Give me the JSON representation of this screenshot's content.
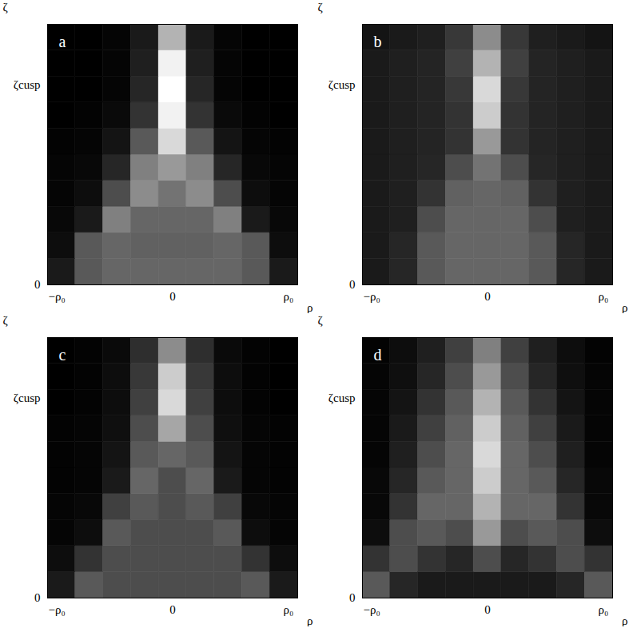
{
  "chart_data": [
    {
      "type": "heatmap",
      "title": "a",
      "x_label": "ρ",
      "y_label": "ζ",
      "xlim": [
        -1.08,
        1.08
      ],
      "ylim": [
        0,
        1.3
      ],
      "xticks": [
        {
          "value": -1,
          "label": "−ρ₀"
        },
        0,
        {
          "value": 1,
          "label": "ρ₀"
        }
      ],
      "yticks": [
        0,
        {
          "value": 1,
          "label": "ζcusp"
        }
      ],
      "x": [
        -0.96,
        -0.72,
        -0.48,
        -0.24,
        0,
        0.24,
        0.48,
        0.72,
        0.96
      ],
      "y": [
        0.065,
        0.195,
        0.325,
        0.455,
        0.585,
        0.715,
        0.845,
        0.975,
        1.105,
        1.235
      ],
      "values": [
        [
          0.1,
          0.35,
          0.4,
          0.4,
          0.4,
          0.4,
          0.4,
          0.35,
          0.1
        ],
        [
          0.05,
          0.35,
          0.4,
          0.38,
          0.38,
          0.38,
          0.4,
          0.35,
          0.05
        ],
        [
          0.03,
          0.1,
          0.5,
          0.4,
          0.4,
          0.4,
          0.5,
          0.1,
          0.03
        ],
        [
          0.02,
          0.05,
          0.3,
          0.55,
          0.45,
          0.55,
          0.3,
          0.05,
          0.02
        ],
        [
          0.02,
          0.03,
          0.15,
          0.5,
          0.6,
          0.5,
          0.15,
          0.03,
          0.02
        ],
        [
          0.01,
          0.02,
          0.08,
          0.35,
          0.85,
          0.35,
          0.08,
          0.02,
          0.01
        ],
        [
          0,
          0.01,
          0.04,
          0.2,
          0.95,
          0.2,
          0.04,
          0.01,
          0
        ],
        [
          0,
          0,
          0.02,
          0.15,
          1,
          0.15,
          0.02,
          0,
          0
        ],
        [
          0,
          0,
          0.02,
          0.12,
          0.95,
          0.12,
          0.02,
          0,
          0
        ],
        [
          0,
          0,
          0.02,
          0.1,
          0.7,
          0.1,
          0.02,
          0,
          0
        ]
      ]
    },
    {
      "type": "heatmap",
      "title": "b",
      "x_label": "ρ",
      "y_label": "ζ",
      "xlim": [
        -1.08,
        1.08
      ],
      "ylim": [
        0,
        1.3
      ],
      "xticks": [
        {
          "value": -1,
          "label": "−ρ₀"
        },
        0,
        {
          "value": 1,
          "label": "ρ₀"
        }
      ],
      "yticks": [
        0,
        {
          "value": 1,
          "label": "ζcusp"
        }
      ],
      "x": [
        -0.96,
        -0.72,
        -0.48,
        -0.24,
        0,
        0.24,
        0.48,
        0.72,
        0.96
      ],
      "y": [
        0.065,
        0.195,
        0.325,
        0.455,
        0.585,
        0.715,
        0.845,
        0.975,
        1.105,
        1.235
      ],
      "values": [
        [
          0.1,
          0.15,
          0.35,
          0.4,
          0.4,
          0.4,
          0.35,
          0.15,
          0.1
        ],
        [
          0.1,
          0.15,
          0.35,
          0.4,
          0.4,
          0.4,
          0.35,
          0.15,
          0.1
        ],
        [
          0.1,
          0.12,
          0.3,
          0.4,
          0.4,
          0.4,
          0.3,
          0.12,
          0.1
        ],
        [
          0.1,
          0.12,
          0.2,
          0.38,
          0.4,
          0.38,
          0.2,
          0.12,
          0.1
        ],
        [
          0.1,
          0.12,
          0.15,
          0.3,
          0.45,
          0.3,
          0.15,
          0.12,
          0.1
        ],
        [
          0.1,
          0.12,
          0.14,
          0.2,
          0.6,
          0.2,
          0.14,
          0.12,
          0.1
        ],
        [
          0.1,
          0.12,
          0.14,
          0.2,
          0.8,
          0.2,
          0.14,
          0.12,
          0.1
        ],
        [
          0.1,
          0.12,
          0.14,
          0.22,
          0.85,
          0.22,
          0.14,
          0.12,
          0.1
        ],
        [
          0.1,
          0.12,
          0.14,
          0.25,
          0.7,
          0.25,
          0.14,
          0.12,
          0.1
        ],
        [
          0.08,
          0.1,
          0.12,
          0.22,
          0.55,
          0.22,
          0.12,
          0.1,
          0.08
        ]
      ]
    },
    {
      "type": "heatmap",
      "title": "c",
      "x_label": "ρ",
      "y_label": "ζ",
      "xlim": [
        -1.08,
        1.08
      ],
      "ylim": [
        0,
        1.3
      ],
      "xticks": [
        {
          "value": -1,
          "label": "−ρ₀"
        },
        0,
        {
          "value": 1,
          "label": "ρ₀"
        }
      ],
      "yticks": [
        0,
        {
          "value": 1,
          "label": "ζcusp"
        }
      ],
      "x": [
        -0.96,
        -0.72,
        -0.48,
        -0.24,
        0,
        0.24,
        0.48,
        0.72,
        0.96
      ],
      "y": [
        0.065,
        0.195,
        0.325,
        0.455,
        0.585,
        0.715,
        0.845,
        0.975,
        1.105,
        1.235
      ],
      "values": [
        [
          0.1,
          0.35,
          0.3,
          0.3,
          0.3,
          0.3,
          0.3,
          0.35,
          0.1
        ],
        [
          0.05,
          0.2,
          0.3,
          0.3,
          0.3,
          0.3,
          0.3,
          0.2,
          0.05
        ],
        [
          0.02,
          0.05,
          0.35,
          0.3,
          0.3,
          0.3,
          0.35,
          0.05,
          0.02
        ],
        [
          0.02,
          0.03,
          0.25,
          0.35,
          0.3,
          0.35,
          0.25,
          0.03,
          0.02
        ],
        [
          0.01,
          0.02,
          0.1,
          0.4,
          0.3,
          0.4,
          0.1,
          0.02,
          0.01
        ],
        [
          0.01,
          0.02,
          0.08,
          0.35,
          0.4,
          0.35,
          0.08,
          0.02,
          0.01
        ],
        [
          0.01,
          0.02,
          0.06,
          0.3,
          0.65,
          0.3,
          0.06,
          0.02,
          0.01
        ],
        [
          0,
          0.01,
          0.05,
          0.25,
          0.85,
          0.25,
          0.05,
          0.01,
          0
        ],
        [
          0,
          0.01,
          0.05,
          0.22,
          0.8,
          0.22,
          0.05,
          0.01,
          0
        ],
        [
          0,
          0.01,
          0.04,
          0.18,
          0.55,
          0.18,
          0.04,
          0.01,
          0
        ]
      ]
    },
    {
      "type": "heatmap",
      "title": "d",
      "x_label": "ρ",
      "y_label": "ζ",
      "xlim": [
        -1.08,
        1.08
      ],
      "ylim": [
        0,
        1.3
      ],
      "xticks": [
        {
          "value": -1,
          "label": "−ρ₀"
        },
        0,
        {
          "value": 1,
          "label": "ρ₀"
        }
      ],
      "yticks": [
        0,
        {
          "value": 1,
          "label": "ζcusp"
        }
      ],
      "x": [
        -0.96,
        -0.72,
        -0.48,
        -0.24,
        0,
        0.24,
        0.48,
        0.72,
        0.96
      ],
      "y": [
        0.065,
        0.195,
        0.325,
        0.455,
        0.585,
        0.715,
        0.845,
        0.975,
        1.105,
        1.235
      ],
      "values": [
        [
          0.35,
          0.15,
          0.1,
          0.1,
          0.1,
          0.1,
          0.1,
          0.15,
          0.35
        ],
        [
          0.2,
          0.3,
          0.2,
          0.15,
          0.3,
          0.15,
          0.2,
          0.3,
          0.2
        ],
        [
          0.05,
          0.3,
          0.35,
          0.3,
          0.6,
          0.3,
          0.35,
          0.3,
          0.05
        ],
        [
          0.03,
          0.2,
          0.4,
          0.4,
          0.7,
          0.4,
          0.4,
          0.2,
          0.03
        ],
        [
          0.03,
          0.15,
          0.35,
          0.4,
          0.8,
          0.4,
          0.35,
          0.15,
          0.03
        ],
        [
          0.02,
          0.12,
          0.3,
          0.4,
          0.85,
          0.4,
          0.3,
          0.12,
          0.02
        ],
        [
          0.02,
          0.1,
          0.25,
          0.38,
          0.8,
          0.38,
          0.25,
          0.1,
          0.02
        ],
        [
          0.02,
          0.08,
          0.2,
          0.35,
          0.7,
          0.35,
          0.2,
          0.08,
          0.02
        ],
        [
          0.02,
          0.06,
          0.15,
          0.3,
          0.6,
          0.3,
          0.15,
          0.06,
          0.02
        ],
        [
          0.01,
          0.05,
          0.12,
          0.25,
          0.5,
          0.25,
          0.12,
          0.05,
          0.01
        ]
      ]
    }
  ]
}
